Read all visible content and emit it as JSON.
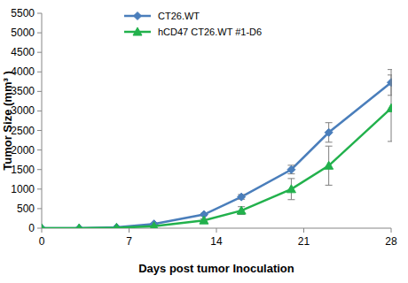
{
  "chart_data": {
    "type": "line",
    "x_label": "Days post tumor Inoculation",
    "y_label": "Tumor Size (mm³ )",
    "x": [
      0,
      3,
      6,
      9,
      13,
      16,
      20,
      23,
      28
    ],
    "series": [
      {
        "name": "CT26.WT",
        "color": "#4a7ebb",
        "marker": "diamond",
        "values": [
          0,
          0,
          20,
          110,
          350,
          800,
          1500,
          2450,
          3730
        ],
        "errors": [
          null,
          null,
          null,
          null,
          30,
          60,
          110,
          250,
          330
        ]
      },
      {
        "name": "hCD47 CT26.WT #1-D6",
        "color": "#22b14c",
        "marker": "triangle",
        "values": [
          0,
          0,
          10,
          50,
          200,
          450,
          1000,
          1600,
          3070
        ],
        "errors": [
          null,
          null,
          null,
          null,
          40,
          100,
          270,
          500,
          850
        ]
      }
    ],
    "xlim": [
      0,
      28
    ],
    "xticks": [
      0,
      7,
      14,
      21,
      28
    ],
    "ylim": [
      0,
      5500
    ],
    "yticks": [
      0,
      500,
      1000,
      1500,
      2000,
      2500,
      3000,
      3500,
      4000,
      4500,
      5000,
      5500
    ],
    "grid": false,
    "legend": "top-left"
  }
}
